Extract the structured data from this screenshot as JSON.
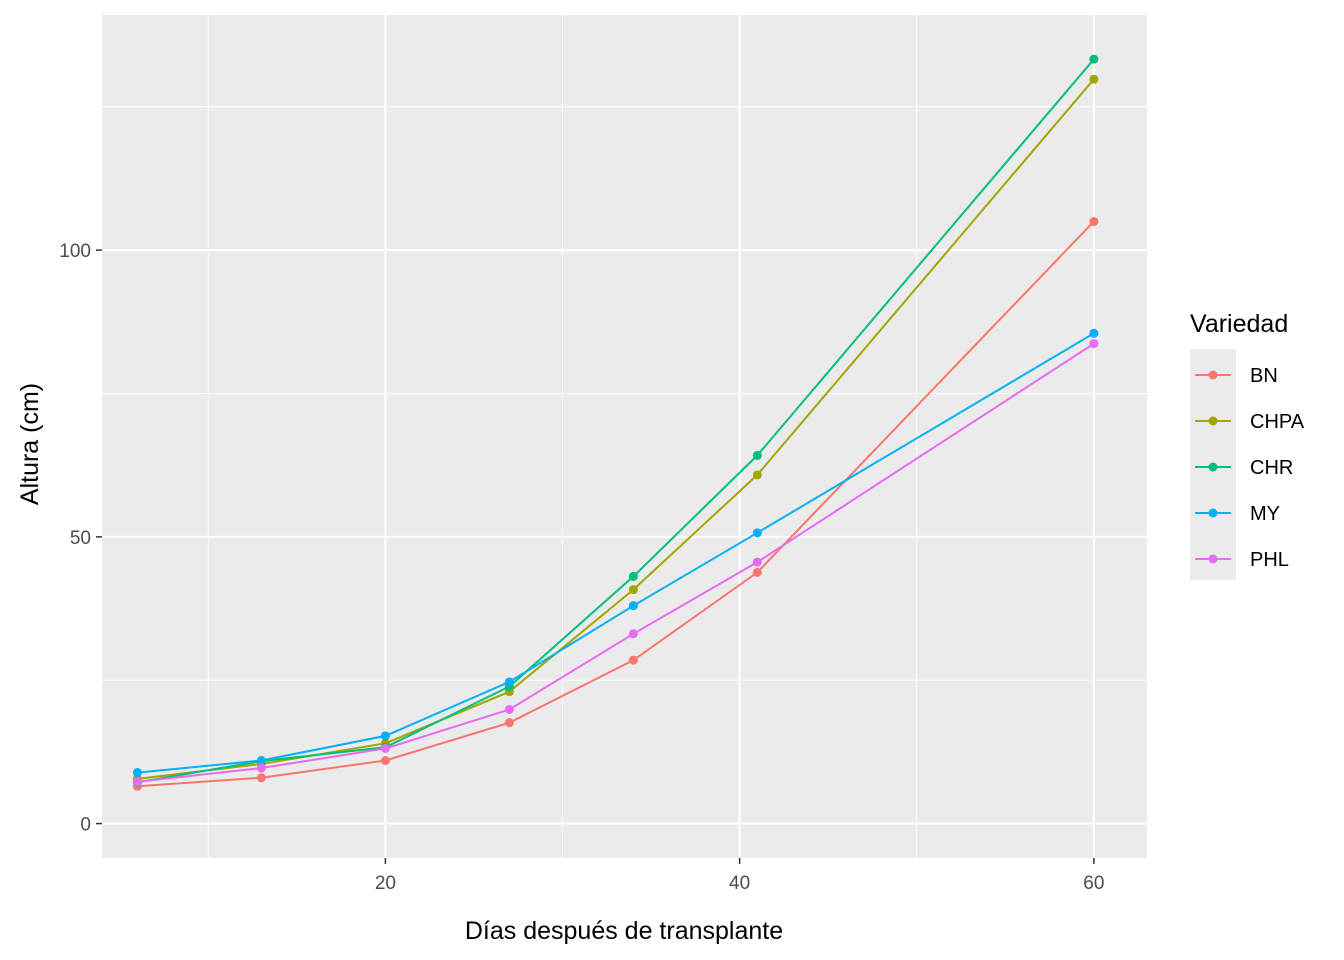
{
  "chart_data": {
    "type": "line",
    "xlabel": "Días después de transplante",
    "ylabel": "Altura (cm)",
    "xlim": [
      4.0,
      63.0
    ],
    "ylim": [
      -6.0,
      141.0
    ],
    "x_ticks": [
      20,
      40,
      60
    ],
    "y_ticks": [
      0,
      50,
      100
    ],
    "x_minor": [
      10,
      30,
      50
    ],
    "y_minor": [
      25,
      75,
      125
    ],
    "grid": true,
    "panel_background": "#EBEBEB",
    "grid_color": "#FFFFFF",
    "legend": {
      "title": "Variedad",
      "position": "right"
    },
    "x": [
      6,
      13,
      20,
      27,
      34,
      41,
      60
    ],
    "series": [
      {
        "name": "BN",
        "color": "#F8766D",
        "values": [
          6.5,
          8.0,
          11.0,
          17.6,
          28.5,
          43.8,
          105.0
        ]
      },
      {
        "name": "CHPA",
        "color": "#A3A500",
        "values": [
          7.8,
          10.4,
          14.0,
          23.0,
          40.8,
          60.8,
          129.8
        ]
      },
      {
        "name": "CHR",
        "color": "#00BF7D",
        "values": [
          7.2,
          10.9,
          13.3,
          23.9,
          43.1,
          64.2,
          133.3
        ]
      },
      {
        "name": "MY",
        "color": "#00B0F6",
        "values": [
          8.9,
          11.0,
          15.3,
          24.7,
          38.0,
          50.7,
          85.5
        ]
      },
      {
        "name": "PHL",
        "color": "#E76BF3",
        "values": [
          7.3,
          9.7,
          13.1,
          19.9,
          33.1,
          45.6,
          83.7
        ]
      }
    ]
  }
}
